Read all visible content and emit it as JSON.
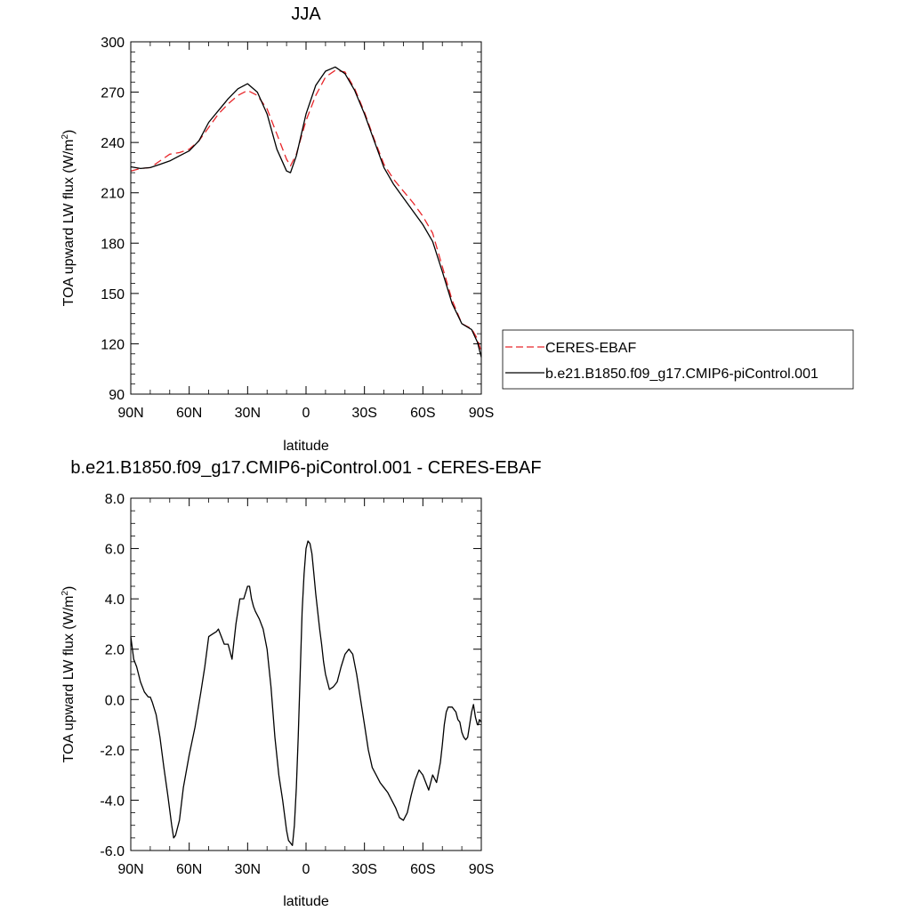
{
  "chart_data": [
    {
      "type": "line",
      "title": "JJA",
      "xlabel": "latitude",
      "ylabel_main": "TOA upward LW flux (W/m",
      "ylabel_sup": "2",
      "ylabel_close": ")",
      "xlim": [
        90,
        -90
      ],
      "ylim": [
        90,
        300
      ],
      "x_ticks": [
        90,
        60,
        30,
        0,
        -30,
        -60,
        -90
      ],
      "x_tick_labels": [
        "90N",
        "60N",
        "30N",
        "0",
        "30S",
        "60S",
        "90S"
      ],
      "y_ticks": [
        90,
        120,
        150,
        180,
        210,
        240,
        270,
        300
      ],
      "y_tick_labels": [
        "90",
        "120",
        "150",
        "180",
        "210",
        "240",
        "270",
        "300"
      ],
      "legend": {
        "placement": "right",
        "entries": [
          {
            "label": "CERES-EBAF",
            "style": "dashed",
            "color": "#e8262a"
          },
          {
            "label": "b.e21.B1850.f09_g17.CMIP6-piControl.001",
            "style": "solid",
            "color": "#000000"
          }
        ]
      },
      "series": [
        {
          "name": "CERES-EBAF",
          "color": "#e8262a",
          "style": "dashed",
          "x": [
            90,
            85,
            80,
            75,
            70,
            65,
            60,
            55,
            50,
            45,
            40,
            35,
            30,
            25,
            20,
            15,
            10,
            8,
            5,
            0,
            -5,
            -10,
            -15,
            -20,
            -25,
            -30,
            -35,
            -40,
            -45,
            -50,
            -55,
            -60,
            -65,
            -70,
            -75,
            -80,
            -85,
            -88,
            -90
          ],
          "y": [
            223,
            224.5,
            225,
            229,
            233,
            234,
            236,
            241,
            249,
            257,
            263,
            268,
            271,
            268,
            260,
            245,
            230,
            226,
            233,
            253,
            268,
            279,
            283,
            282,
            272,
            258,
            242,
            227,
            218,
            211,
            204,
            196,
            186,
            166,
            146,
            132,
            129,
            123,
            115
          ]
        },
        {
          "name": "b.e21.B1850.f09_g17.CMIP6-piControl.001",
          "color": "#000000",
          "style": "solid",
          "x": [
            90,
            85,
            80,
            75,
            70,
            65,
            60,
            55,
            50,
            45,
            40,
            35,
            30,
            25,
            20,
            15,
            10,
            8,
            5,
            0,
            -5,
            -10,
            -15,
            -20,
            -25,
            -30,
            -35,
            -40,
            -45,
            -50,
            -55,
            -60,
            -65,
            -70,
            -75,
            -80,
            -85,
            -88,
            -90
          ],
          "y": [
            225.5,
            224.5,
            225,
            227,
            229,
            232,
            235,
            241,
            252,
            259,
            266,
            272,
            275,
            270,
            257,
            236,
            223,
            222,
            232,
            257,
            274,
            282.5,
            285,
            281,
            271,
            257,
            241,
            225,
            215,
            207,
            199,
            191,
            181,
            163,
            144,
            132,
            128.5,
            121,
            112
          ]
        }
      ]
    },
    {
      "type": "line",
      "title": "b.e21.B1850.f09_g17.CMIP6-piControl.001 - CERES-EBAF",
      "xlabel": "latitude",
      "ylabel_main": "TOA upward LW flux (W/m",
      "ylabel_sup": "2",
      "ylabel_close": ")",
      "xlim": [
        90,
        -90
      ],
      "ylim": [
        -6,
        8
      ],
      "x_ticks": [
        90,
        60,
        30,
        0,
        -30,
        -60,
        -90
      ],
      "x_tick_labels": [
        "90N",
        "60N",
        "30N",
        "0",
        "30S",
        "60S",
        "90S"
      ],
      "y_ticks": [
        -6,
        -4,
        -2,
        0,
        2,
        4,
        6,
        8
      ],
      "y_tick_labels": [
        "-6.0",
        "-4.0",
        "-2.0",
        "0.0",
        "2.0",
        "4.0",
        "6.0",
        "8.0"
      ],
      "series": [
        {
          "color": "#000000",
          "style": "solid",
          "x": [
            90,
            88.5,
            87,
            85,
            83,
            81,
            80,
            79,
            77,
            75,
            73,
            71,
            69,
            68,
            67,
            65,
            63,
            60,
            57,
            54,
            52,
            50,
            48,
            46,
            45,
            44,
            42,
            40,
            38,
            36,
            34,
            32,
            30,
            29,
            28,
            27,
            26,
            24,
            22,
            20,
            18,
            16,
            14,
            12,
            10,
            9,
            8,
            7,
            6,
            5,
            4,
            3,
            2,
            1,
            0,
            -1,
            -2,
            -3,
            -4,
            -5,
            -6,
            -7,
            -8,
            -9,
            -10,
            -12,
            -14,
            -16,
            -18,
            -20,
            -22,
            -24,
            -26,
            -28,
            -30,
            -32,
            -34,
            -36,
            -38,
            -40,
            -42,
            -44,
            -46,
            -48,
            -50,
            -52,
            -54,
            -56,
            -58,
            -60,
            -62,
            -63,
            -65,
            -67,
            -69,
            -70,
            -71,
            -72,
            -73,
            -75,
            -77,
            -78,
            -79,
            -80,
            -81,
            -82,
            -83,
            -85,
            -86,
            -87,
            -88,
            -88.5,
            -89,
            -90
          ],
          "y": [
            2.5,
            1.6,
            1.3,
            0.7,
            0.3,
            0.1,
            0.1,
            -0.1,
            -0.6,
            -1.5,
            -2.7,
            -3.8,
            -5.0,
            -5.5,
            -5.4,
            -4.8,
            -3.5,
            -2.2,
            -1.1,
            0.3,
            1.3,
            2.5,
            2.6,
            2.7,
            2.8,
            2.6,
            2.2,
            2.2,
            1.6,
            3.0,
            4.0,
            4.0,
            4.5,
            4.5,
            4.0,
            3.7,
            3.5,
            3.2,
            2.8,
            2.0,
            0.5,
            -1.5,
            -3.0,
            -4.0,
            -5.2,
            -5.6,
            -5.7,
            -5.8,
            -5.0,
            -3.5,
            -1.5,
            1.0,
            3.5,
            5.0,
            6.0,
            6.3,
            6.2,
            5.8,
            5.0,
            4.2,
            3.5,
            2.8,
            2.2,
            1.5,
            1.0,
            0.4,
            0.5,
            0.7,
            1.3,
            1.8,
            2.0,
            1.8,
            1.0,
            0.0,
            -1.0,
            -2.0,
            -2.7,
            -3.0,
            -3.3,
            -3.5,
            -3.7,
            -4.0,
            -4.3,
            -4.7,
            -4.8,
            -4.5,
            -3.8,
            -3.2,
            -2.8,
            -3.0,
            -3.4,
            -3.6,
            -3.0,
            -3.3,
            -2.5,
            -1.8,
            -1.0,
            -0.5,
            -0.3,
            -0.3,
            -0.5,
            -0.8,
            -0.9,
            -1.3,
            -1.5,
            -1.6,
            -1.5,
            -0.5,
            -0.2,
            -0.7,
            -1.0,
            -1.0,
            -0.8,
            -0.9
          ]
        }
      ]
    }
  ]
}
